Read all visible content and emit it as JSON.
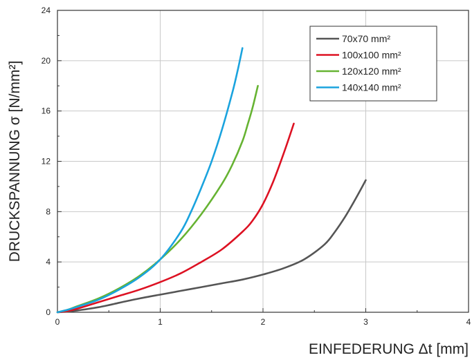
{
  "chart_data": {
    "type": "line",
    "xlabel": "EINFEDERUNG Δt [mm]",
    "ylabel": "DRUCKSPANNUNG σ [N/mm²]",
    "xlim": [
      0,
      4
    ],
    "ylim": [
      0,
      24
    ],
    "xticks": [
      "0",
      "1",
      "2",
      "3",
      "4"
    ],
    "yticks": [
      "0",
      "4",
      "8",
      "12",
      "16",
      "20",
      "24"
    ],
    "grid": true,
    "legend_position": "top-right",
    "series": [
      {
        "name": "70x70 mm²",
        "color": "#555555",
        "x": [
          0,
          0.1,
          0.2,
          0.4,
          0.6,
          0.8,
          1.0,
          1.2,
          1.4,
          1.6,
          1.8,
          2.0,
          2.2,
          2.4,
          2.6,
          2.7,
          2.8,
          2.9,
          3.0
        ],
        "y": [
          0,
          0.05,
          0.15,
          0.4,
          0.75,
          1.1,
          1.4,
          1.7,
          2.0,
          2.3,
          2.6,
          3.0,
          3.5,
          4.2,
          5.4,
          6.4,
          7.6,
          9.0,
          10.5
        ]
      },
      {
        "name": "100x100 mm²",
        "color": "#dd1122",
        "x": [
          0,
          0.1,
          0.2,
          0.4,
          0.6,
          0.8,
          1.0,
          1.2,
          1.4,
          1.6,
          1.8,
          1.9,
          2.0,
          2.1,
          2.2,
          2.3
        ],
        "y": [
          0,
          0.1,
          0.3,
          0.8,
          1.3,
          1.8,
          2.4,
          3.1,
          4.0,
          5.0,
          6.4,
          7.3,
          8.6,
          10.4,
          12.6,
          15.0
        ]
      },
      {
        "name": "120x120 mm²",
        "color": "#66b332",
        "x": [
          0,
          0.1,
          0.2,
          0.4,
          0.6,
          0.8,
          1.0,
          1.2,
          1.4,
          1.6,
          1.7,
          1.8,
          1.85,
          1.9,
          1.95
        ],
        "y": [
          0,
          0.2,
          0.5,
          1.1,
          1.9,
          2.9,
          4.2,
          5.8,
          7.8,
          10.2,
          11.7,
          13.6,
          14.9,
          16.3,
          18.0
        ]
      },
      {
        "name": "140x140 mm²",
        "color": "#1aa3de",
        "x": [
          0,
          0.1,
          0.2,
          0.4,
          0.6,
          0.8,
          1.0,
          1.2,
          1.3,
          1.4,
          1.5,
          1.6,
          1.7,
          1.75,
          1.8
        ],
        "y": [
          0,
          0.2,
          0.45,
          1.0,
          1.8,
          2.8,
          4.2,
          6.4,
          8.0,
          9.9,
          12.0,
          14.5,
          17.4,
          19.1,
          21.0
        ]
      }
    ]
  }
}
